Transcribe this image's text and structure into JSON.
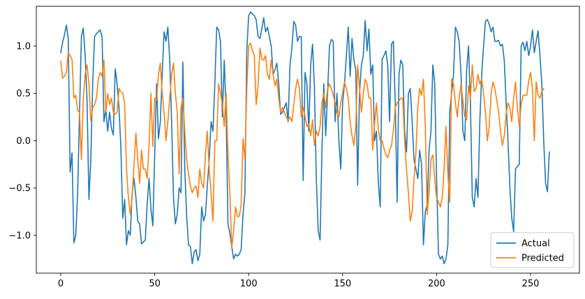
{
  "chart_data": {
    "type": "line",
    "title": "",
    "xlabel": "",
    "ylabel": "",
    "xlim": [
      -13,
      276
    ],
    "ylim": [
      -1.4,
      1.42
    ],
    "xticks": [
      0,
      50,
      100,
      150,
      200,
      250
    ],
    "xtick_labels": [
      "0",
      "50",
      "100",
      "150",
      "200",
      "250"
    ],
    "yticks": [
      -1.0,
      -0.5,
      0.0,
      0.5,
      1.0
    ],
    "ytick_labels": [
      "−1.0",
      "−0.5",
      "0.0",
      "0.5",
      "1.0"
    ],
    "grid": false,
    "legend_position": "lower-right",
    "series": [
      {
        "name": "Actual",
        "color": "#1f77b4",
        "x_start": 0,
        "values": [
          0.93,
          1.04,
          1.12,
          1.22,
          1.08,
          -0.33,
          -0.13,
          -1.08,
          -1.0,
          -0.55,
          0.29,
          1.1,
          1.19,
          0.9,
          0.42,
          -0.62,
          -0.2,
          0.6,
          1.1,
          1.13,
          1.15,
          1.17,
          1.1,
          0.2,
          0.33,
          0.1,
          0.3,
          0.13,
          0.06,
          0.76,
          0.6,
          0.35,
          -0.07,
          -0.82,
          -0.62,
          -1.1,
          -0.95,
          -1.0,
          -0.55,
          -0.4,
          -0.6,
          -0.85,
          -0.88,
          -1.09,
          -1.07,
          -1.05,
          -0.67,
          -0.4,
          -0.72,
          -0.9,
          -0.15,
          0.6,
          0.02,
          0.2,
          0.7,
          1.15,
          1.05,
          1.2,
          0.85,
          0.2,
          -0.6,
          -0.88,
          -0.78,
          -0.5,
          -0.55,
          0.83,
          -0.3,
          -0.8,
          -1.1,
          -1.12,
          -1.3,
          -1.18,
          -1.15,
          -1.27,
          -1.2,
          -0.7,
          -0.85,
          -0.78,
          -0.48,
          -0.2,
          0.2,
          0.1,
          0.6,
          1.2,
          1.17,
          1.05,
          0.25,
          0.85,
          0.3,
          -0.88,
          -0.98,
          -1.12,
          -1.25,
          -1.2,
          -1.22,
          -1.2,
          -1.15,
          -0.78,
          -0.55,
          0.95,
          1.32,
          1.36,
          1.34,
          1.32,
          1.28,
          1.1,
          1.08,
          1.18,
          1.3,
          1.15,
          1.2,
          1.1,
          1.0,
          0.7,
          0.75,
          0.82,
          0.6,
          0.28,
          0.3,
          0.35,
          0.4,
          0.2,
          0.8,
          0.98,
          1.26,
          1.22,
          1.05,
          1.1,
          1.1,
          -0.42,
          0.72,
          0.6,
          0.1,
          0.8,
          1.02,
          0.56,
          -0.4,
          -0.95,
          -1.05,
          -0.1,
          0.6,
          0.05,
          0.5,
          1.0,
          1.07,
          1.05,
          0.2,
          0.5,
          0.0,
          -0.3,
          0.4,
          0.6,
          0.9,
          1.2,
          0.68,
          1.08,
          0.85,
          0.75,
          -0.47,
          0.5,
          0.8,
          0.9,
          1.27,
          0.95,
          1.18,
          0.7,
          0.8,
          0.0,
          0.1,
          -0.45,
          -0.7,
          0.86,
          0.9,
          0.95,
          0.8,
          0.2,
          1.02,
          1.05,
          0.4,
          -0.65,
          0.7,
          0.85,
          0.8,
          0.1,
          -0.12,
          0.5,
          0.55,
          0.2,
          -0.2,
          -0.3,
          -0.4,
          -0.1,
          -0.25,
          -1.1,
          -0.75,
          -0.68,
          -0.1,
          0.1,
          0.8,
          0.6,
          -0.4,
          -1.2,
          -1.25,
          -1.22,
          -1.3,
          -1.25,
          -1.1,
          0.3,
          0.5,
          0.7,
          1.2,
          1.15,
          1.05,
          0.7,
          0.1,
          0.0,
          0.75,
          1.0,
          0.4,
          -0.6,
          -0.7,
          -0.4,
          -0.6,
          0.2,
          0.7,
          1.0,
          1.26,
          1.28,
          1.23,
          1.15,
          1.2,
          1.05,
          1.05,
          1.06,
          1.0,
          1.02,
          0.85,
          0.4,
          0.0,
          -0.5,
          -0.82,
          -0.96,
          -0.3,
          -0.27,
          -0.25,
          1.0,
          1.04,
          0.95,
          1.05,
          0.9,
          1.0,
          1.17,
          0.93,
          1.05,
          1.16,
          0.9,
          0.6,
          0.0,
          -0.45,
          -0.54,
          -0.12
        ]
      },
      {
        "name": "Predicted",
        "color": "#ff7f0e",
        "x_start": 0,
        "values": [
          0.84,
          0.66,
          0.68,
          0.72,
          0.93,
          0.9,
          0.86,
          0.45,
          0.48,
          0.32,
          0.3,
          -0.2,
          0.45,
          0.7,
          0.8,
          0.6,
          0.21,
          0.35,
          0.38,
          0.45,
          0.65,
          0.72,
          0.68,
          0.85,
          0.3,
          0.5,
          0.38,
          0.45,
          0.3,
          0.28,
          0.3,
          0.55,
          0.52,
          0.5,
          0.4,
          -0.3,
          -0.6,
          -0.78,
          -0.6,
          -0.25,
          0.08,
          -0.2,
          -0.45,
          -0.1,
          -0.3,
          -0.3,
          -0.4,
          -0.05,
          0.5,
          -0.06,
          0.45,
          0.43,
          0.7,
          0.82,
          0.5,
          0.3,
          0.0,
          0.2,
          0.45,
          0.7,
          0.82,
          0.5,
          0.3,
          -0.35,
          0.35,
          0.45,
          0.1,
          -0.2,
          -0.35,
          -0.48,
          -0.55,
          -0.5,
          -0.48,
          -0.6,
          -0.3,
          -0.45,
          -0.5,
          -0.15,
          0.1,
          -0.3,
          -0.55,
          -0.85,
          0.0,
          0.0,
          0.6,
          0.5,
          0.4,
          0.15,
          0.5,
          -0.15,
          -0.55,
          -1.13,
          -0.95,
          -0.7,
          -0.8,
          -0.8,
          -0.68,
          0.02,
          -0.2,
          0.55,
          1.0,
          1.03,
          0.95,
          0.9,
          0.38,
          0.58,
          0.98,
          0.86,
          0.85,
          0.9,
          0.7,
          0.65,
          0.85,
          0.7,
          0.58,
          0.65,
          0.45,
          0.3,
          0.35,
          0.3,
          0.25,
          0.22,
          0.25,
          0.2,
          0.38,
          0.55,
          0.65,
          0.55,
          0.25,
          0.35,
          0.25,
          0.15,
          0.18,
          0.05,
          0.22,
          -0.05,
          0.1,
          0.05,
          0.15,
          0.4,
          0.5,
          0.35,
          0.55,
          0.6,
          0.55,
          0.48,
          0.4,
          0.3,
          0.25,
          0.4,
          0.5,
          0.62,
          0.55,
          0.45,
          0.2,
          0.05,
          -0.05,
          0.15,
          0.8,
          0.55,
          0.3,
          0.5,
          0.65,
          0.6,
          0.45,
          0.45,
          -0.1,
          0.18,
          0.4,
          0.12,
          0.0,
          0.0,
          -0.08,
          -0.15,
          -0.18,
          -0.1,
          -0.05,
          0.1,
          0.35,
          0.4,
          0.42,
          0.45,
          0.45,
          0.0,
          -0.3,
          -0.55,
          -0.85,
          -0.75,
          -0.4,
          -0.13,
          0.35,
          0.55,
          0.48,
          0.65,
          0.15,
          -0.78,
          -0.55,
          -0.2,
          -0.15,
          -0.4,
          -0.6,
          -0.65,
          -0.7,
          -0.6,
          -0.3,
          0.15,
          -0.35,
          -0.65,
          0.65,
          0.6,
          0.4,
          0.25,
          0.45,
          0.6,
          0.42,
          0.25,
          0.22,
          0.58,
          0.45,
          0.8,
          0.52,
          0.55,
          0.7,
          0.6,
          0.65,
          0.5,
          0.3,
          0.0,
          0.15,
          0.5,
          0.62,
          0.55,
          0.43,
          0.3,
          0.1,
          -0.05,
          0.05,
          0.28,
          0.4,
          0.35,
          0.2,
          0.45,
          0.62,
          0.35,
          0.15,
          0.38,
          0.48,
          0.48,
          0.48,
          0.63,
          0.72,
          0.55,
          0.0,
          0.62,
          0.48,
          0.45,
          0.52,
          0.55
        ]
      }
    ]
  }
}
